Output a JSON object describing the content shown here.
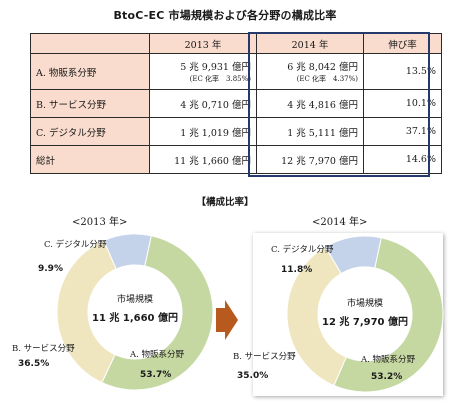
{
  "title": "BtoC-EC 市場規模および各分野の構成比率",
  "table": {
    "headers": [
      "",
      "2013 年",
      "2014 年",
      "伸び率"
    ],
    "rows": [
      {
        "label": "A.  物販系分野",
        "v2013": "5 兆 9,931 億円",
        "v2013_sub": "(EC 化率　3.85%)",
        "v2014": "6 兆 8,042 億円",
        "v2014_sub": "(EC 化率　4.37%)",
        "growth": "13.5%"
      },
      {
        "label": "B.  サービス分野",
        "v2013": "4 兆 0,710 億円",
        "v2013_sub": "",
        "v2014": "4 兆 4,816 億円",
        "v2014_sub": "",
        "growth": "10.1%"
      },
      {
        "label": "C.  デジタル分野",
        "v2013": "1 兆 1,019 億円",
        "v2013_sub": "",
        "v2014": "1 兆 5,111 億円",
        "v2014_sub": "",
        "growth": "37.1%"
      },
      {
        "label": "総計",
        "v2013": "11 兆 1,660 億円",
        "v2013_sub": "",
        "v2014": "12 兆 7,970 億円",
        "v2014_sub": "",
        "growth": "14.6%"
      }
    ]
  },
  "section_title": "【構成比率】",
  "colors": {
    "A": "#c5d8a1",
    "B": "#efe6c0",
    "C": "#c4d2ea",
    "table_header": "#f9dccd",
    "highlight_border": "#233a6a",
    "arrow": "#b85a1d"
  },
  "chart_data": [
    {
      "type": "pie",
      "title": "<2013 年>",
      "center_label": "市場規模",
      "center_value": "11 兆 1,660 億円",
      "categories": [
        "A.  物販系分野",
        "B.  サービス分野",
        "C.  デジタル分野"
      ],
      "values": [
        53.7,
        36.5,
        9.9
      ],
      "value_labels": [
        "53.7%",
        "36.5%",
        "9.9%"
      ]
    },
    {
      "type": "pie",
      "title": "<2014 年>",
      "center_label": "市場規模",
      "center_value": "12 兆 7,970 億円",
      "categories": [
        "A.  物販系分野",
        "B.  サービス分野",
        "C.  デジタル分野"
      ],
      "values": [
        53.2,
        35.0,
        11.8
      ],
      "value_labels": [
        "53.2%",
        "35.0%",
        "11.8%"
      ]
    }
  ]
}
